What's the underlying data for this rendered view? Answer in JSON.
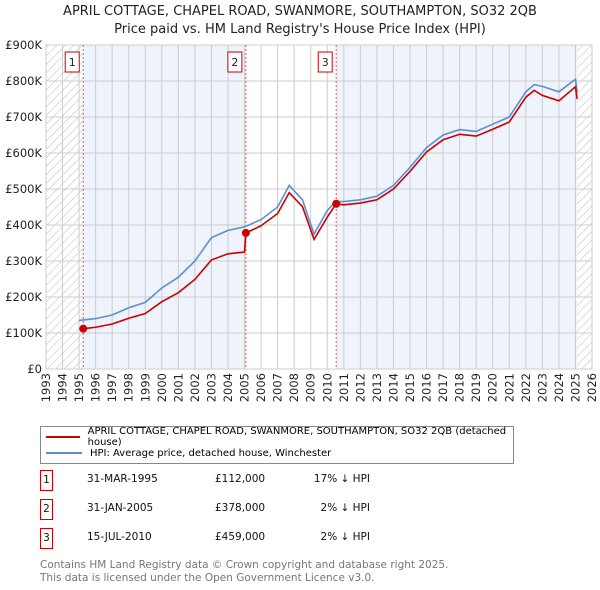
{
  "chart_data": {
    "type": "line",
    "title": "APRIL COTTAGE, CHAPEL ROAD, SWANMORE, SOUTHAMPTON, SO32 2QB",
    "subtitle": "Price paid vs. HM Land Registry's House Price Index (HPI)",
    "xlim": [
      1993,
      2026
    ],
    "ylim": [
      0,
      900000
    ],
    "x_ticks": [
      "1993",
      "1994",
      "1995",
      "1996",
      "1997",
      "1998",
      "1999",
      "2000",
      "2001",
      "2002",
      "2003",
      "2004",
      "2005",
      "2006",
      "2007",
      "2008",
      "2009",
      "2010",
      "2011",
      "2012",
      "2013",
      "2014",
      "2015",
      "2016",
      "2017",
      "2018",
      "2019",
      "2020",
      "2021",
      "2022",
      "2023",
      "2024",
      "2025",
      "2026"
    ],
    "y_ticks": [
      {
        "v": 0,
        "l": "£0"
      },
      {
        "v": 100000,
        "l": "£100K"
      },
      {
        "v": 200000,
        "l": "£200K"
      },
      {
        "v": 300000,
        "l": "£300K"
      },
      {
        "v": 400000,
        "l": "£400K"
      },
      {
        "v": 500000,
        "l": "£500K"
      },
      {
        "v": 600000,
        "l": "£600K"
      },
      {
        "v": 700000,
        "l": "£700K"
      },
      {
        "v": 800000,
        "l": "£800K"
      },
      {
        "v": 900000,
        "l": "£900K"
      }
    ],
    "series": [
      {
        "name": "APRIL COTTAGE, CHAPEL ROAD, SWANMORE, SOUTHAMPTON, SO32 2QB (detached house)",
        "color": "#cc0000",
        "x": [
          1995.25,
          1996,
          1997,
          1998,
          1999,
          2000,
          2001,
          2002,
          2003,
          2004,
          2005.0,
          2005.08,
          2006,
          2007,
          2007.7,
          2008.5,
          2009.2,
          2010,
          2010.54,
          2011,
          2012,
          2013,
          2014,
          2015,
          2016,
          2017,
          2018,
          2019,
          2020,
          2021,
          2022,
          2022.5,
          2023,
          2024,
          2025,
          2025.1
        ],
        "y": [
          112000,
          116000,
          125000,
          141000,
          154000,
          187000,
          212000,
          249000,
          303000,
          320000,
          325000,
          378000,
          398000,
          432000,
          490000,
          451000,
          360000,
          422000,
          459000,
          456000,
          461000,
          470000,
          500000,
          549000,
          603000,
          637000,
          652000,
          647000,
          666000,
          686000,
          755000,
          774000,
          760000,
          745000,
          784000,
          750000
        ]
      },
      {
        "name": "HPI: Average price, detached house, Winchester",
        "color": "#5b8fd6",
        "x": [
          1995,
          1996,
          1997,
          1998,
          1999,
          2000,
          2001,
          2002,
          2003,
          2004,
          2005,
          2006,
          2007,
          2007.7,
          2008.5,
          2009.2,
          2010,
          2010.5,
          2011,
          2012,
          2013,
          2014,
          2015,
          2016,
          2017,
          2018,
          2019,
          2020,
          2021,
          2022,
          2022.5,
          2023,
          2024,
          2025,
          2025.1
        ],
        "y": [
          135000,
          140000,
          150000,
          170000,
          185000,
          225000,
          255000,
          300000,
          365000,
          385000,
          395000,
          415000,
          450000,
          510000,
          470000,
          375000,
          440000,
          465000,
          465000,
          470000,
          480000,
          510000,
          560000,
          615000,
          650000,
          665000,
          660000,
          680000,
          700000,
          770000,
          790000,
          785000,
          770000,
          805000,
          770000
        ]
      }
    ],
    "sales": [
      {
        "id": "1",
        "x": 1995.25,
        "y": 112000,
        "date": "31-MAR-1995",
        "price": "£112,000",
        "hpi": "17% ↓ HPI"
      },
      {
        "id": "2",
        "x": 2005.08,
        "y": 378000,
        "date": "31-JAN-2005",
        "price": "£378,000",
        "hpi": "2% ↓ HPI"
      },
      {
        "id": "3",
        "x": 2010.54,
        "y": 459000,
        "date": "15-JUL-2010",
        "price": "£459,000",
        "hpi": "2% ↓ HPI"
      }
    ]
  },
  "footer": [
    "Contains HM Land Registry data © Crown copyright and database right 2025.",
    "This data is licensed under the Open Government Licence v3.0."
  ]
}
